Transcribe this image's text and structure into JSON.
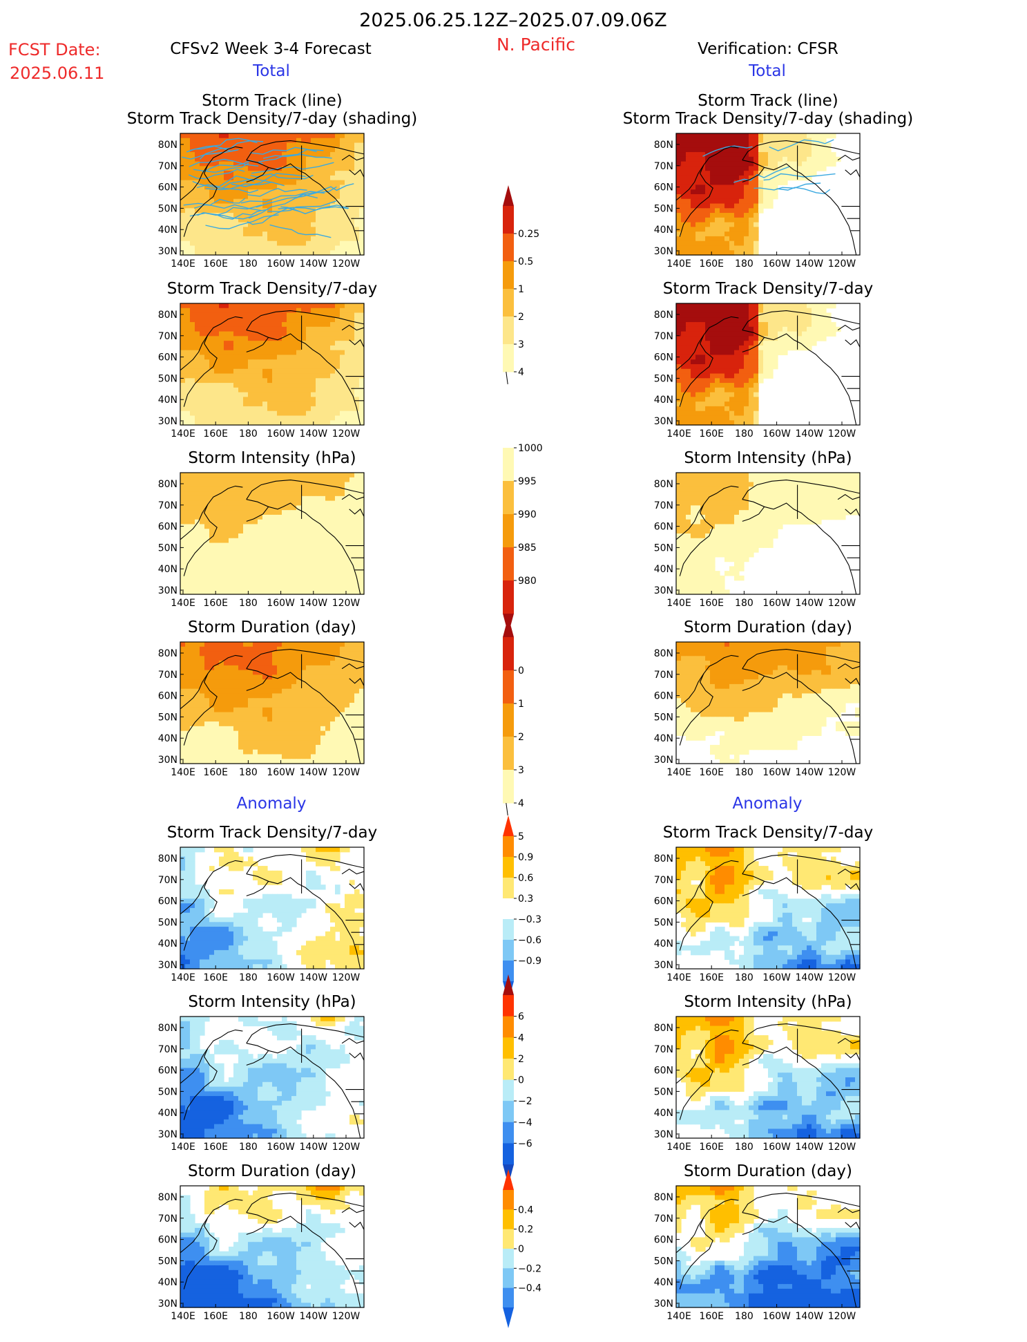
{
  "header": {
    "date_range": "2025.06.25.12Z–2025.07.09.06Z",
    "region": "N. Pacific",
    "fcst_label": "FCST Date:",
    "fcst_date": "2025.06.11",
    "model_label": "CFSv2 Week 3-4 Forecast",
    "verification_label": "Verification: CFSR",
    "total_left": "Total",
    "total_right": "Total",
    "anomaly_left": "Anomaly",
    "anomaly_right": "Anomaly"
  },
  "map": {
    "lat_labels": [
      "80N",
      "70N",
      "60N",
      "50N",
      "40N",
      "30N"
    ],
    "lon_labels": [
      "140E",
      "160E",
      "180",
      "160W",
      "140W",
      "120W"
    ]
  },
  "panels": [
    {
      "id": "track-left",
      "title1": "Storm Track (line)",
      "title2": "Storm Track Density/7-day (shading)",
      "field": "density",
      "variant": 1,
      "tracks": true
    },
    {
      "id": "track-right",
      "title1": "Storm Track (line)",
      "title2": "Storm Track Density/7-day (shading)",
      "field": "density",
      "variant": 2,
      "tracks": true
    },
    {
      "id": "density-left",
      "title1": "Storm Track Density/7-day",
      "field": "density",
      "variant": 1
    },
    {
      "id": "density-right",
      "title1": "Storm Track Density/7-day",
      "field": "density",
      "variant": 2
    },
    {
      "id": "intensity-left",
      "title1": "Storm Intensity (hPa)",
      "field": "intensity",
      "variant": 1
    },
    {
      "id": "intensity-right",
      "title1": "Storm Intensity (hPa)",
      "field": "intensity",
      "variant": 2
    },
    {
      "id": "duration-left",
      "title1": "Storm Duration (day)",
      "field": "duration",
      "variant": 1
    },
    {
      "id": "duration-right",
      "title1": "Storm Duration (day)",
      "field": "duration",
      "variant": 2
    },
    {
      "id": "anom-density-left",
      "title1": "Storm Track Density/7-day",
      "field": "anom_density",
      "variant": 1
    },
    {
      "id": "anom-density-right",
      "title1": "Storm Track Density/7-day",
      "field": "anom_density",
      "variant": 2
    },
    {
      "id": "anom-intensity-left",
      "title1": "Storm Intensity (hPa)",
      "field": "anom_intensity",
      "variant": 1
    },
    {
      "id": "anom-intensity-right",
      "title1": "Storm Intensity (hPa)",
      "field": "anom_intensity",
      "variant": 2
    },
    {
      "id": "anom-duration-left",
      "title1": "Storm Duration (day)",
      "field": "anom_duration",
      "variant": 1
    },
    {
      "id": "anom-duration-right",
      "title1": "Storm Duration (day)",
      "field": "anom_duration",
      "variant": 2
    }
  ],
  "colorbars": [
    {
      "id": "density",
      "direction": "up",
      "labels": [
        "0.25",
        "0.5",
        "1",
        "2",
        "3",
        "4"
      ],
      "colors": [
        "#fff9b4",
        "#fde68a",
        "#fbbf3d",
        "#f59b0c",
        "#f25f10",
        "#d8230c",
        "#a50d0d"
      ]
    },
    {
      "id": "intensity",
      "direction": "down",
      "labels": [
        "1000",
        "995",
        "990",
        "985",
        "980"
      ],
      "colors": [
        "#fff9b4",
        "#fbbf3d",
        "#f59b0c",
        "#f25f10",
        "#d8230c",
        "#a50d0d"
      ]
    },
    {
      "id": "duration",
      "direction": "up",
      "labels": [
        "0",
        "1",
        "2",
        "3",
        "4",
        "5"
      ],
      "colors": [
        "#fff9b4",
        "#fbbf3d",
        "#f59b0c",
        "#f25f10",
        "#d8230c",
        "#a50d0d"
      ]
    },
    {
      "id": "anom_density",
      "direction": "both",
      "labels": [
        "0.9",
        "0.6",
        "0.3",
        "−0.3",
        "−0.6",
        "−0.9"
      ],
      "colors": [
        "#ff3300",
        "#ff8c00",
        "#ffbf00",
        "#ffe873",
        "#ffffff",
        "#b9ecf7",
        "#7ec8f5",
        "#3e8ff0",
        "#1562e0"
      ]
    },
    {
      "id": "anom_intensity",
      "direction": "both",
      "labels": [
        "6",
        "4",
        "2",
        "0",
        "−2",
        "−4",
        "−6"
      ],
      "colors": [
        "#a50d0d",
        "#ff3300",
        "#ff8c00",
        "#ffbf00",
        "#ffe873",
        "#b9ecf7",
        "#7ec8f5",
        "#3e8ff0",
        "#1562e0",
        "#1549c0"
      ]
    },
    {
      "id": "anom_duration",
      "direction": "both",
      "labels": [
        "0.4",
        "0.2",
        "0",
        "−0.2",
        "−0.4"
      ],
      "colors": [
        "#ff3300",
        "#ff8c00",
        "#ffbf00",
        "#ffe873",
        "#b9ecf7",
        "#7ec8f5",
        "#3e8ff0",
        "#1562e0"
      ]
    }
  ],
  "palettes": {
    "density": [
      "#ffffff",
      "#fff9b4",
      "#fde68a",
      "#fbbf3d",
      "#f59b0c",
      "#f25f10",
      "#d8230c",
      "#a50d0d"
    ],
    "intensity": [
      "#ffffff",
      "#fff9b4",
      "#fbbf3d",
      "#f59b0c",
      "#f25f10",
      "#d8230c",
      "#a50d0d"
    ],
    "duration": [
      "#ffffff",
      "#fff9b4",
      "#fbbf3d",
      "#f59b0c",
      "#f25f10",
      "#d8230c",
      "#a50d0d"
    ],
    "anomaly": [
      "#1562e0",
      "#3e8ff0",
      "#7ec8f5",
      "#b9ecf7",
      "#ffffff",
      "#ffe873",
      "#ffbf00",
      "#ff8c00",
      "#ff3300",
      "#a50d0d"
    ],
    "track_color": "#3aa9e0"
  }
}
